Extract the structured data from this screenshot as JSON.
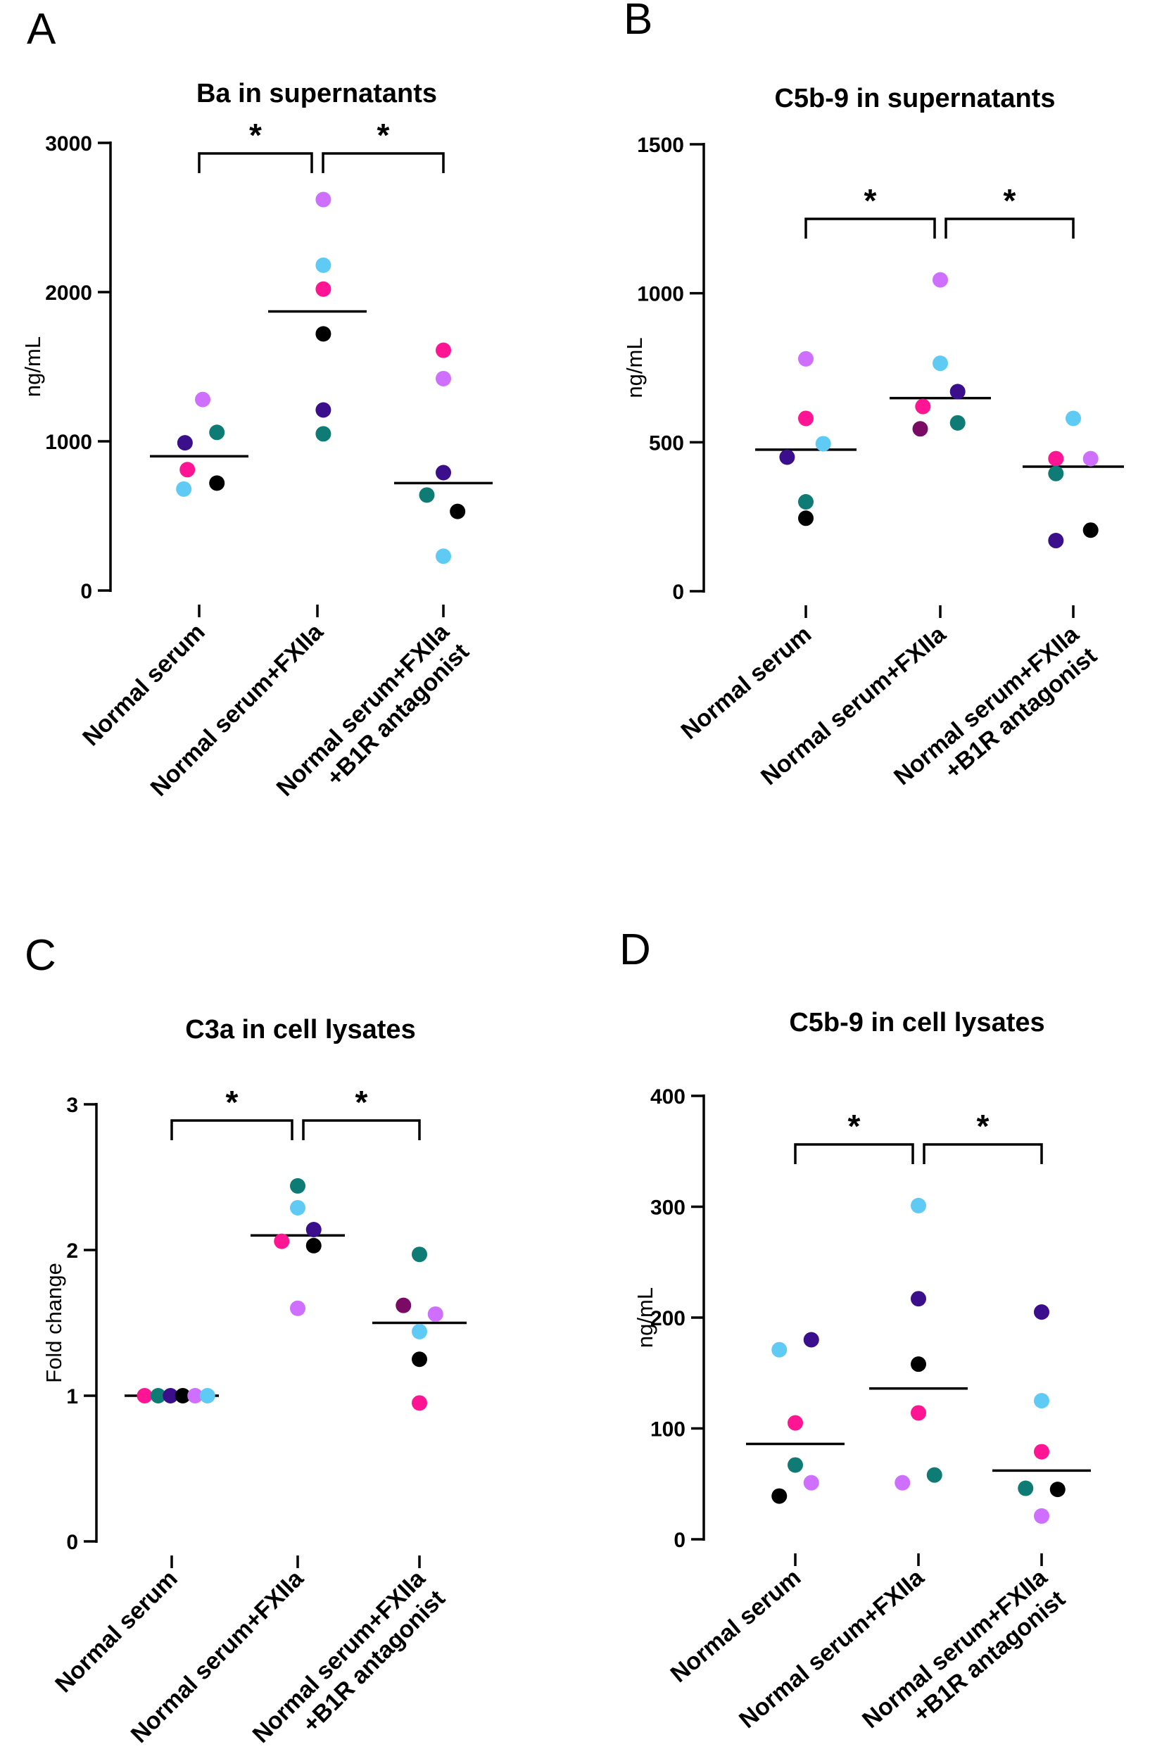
{
  "colors": {
    "pink": "#FF1493",
    "violet": "#CF6FFF",
    "cyan": "#5FCBF5",
    "teal": "#0E7B74",
    "black": "#000000",
    "indigo": "#3B0F8C",
    "plum": "#7A0A64"
  },
  "chart_data": [
    {
      "type": "scatter",
      "panel": "A",
      "title": "Ba in supernatants",
      "ylabel": "ng/mL",
      "xlabel": "",
      "ylim": [
        0,
        3000
      ],
      "yticks": [
        0,
        1000,
        2000,
        3000
      ],
      "tick_labels": [
        "0",
        "1000",
        "2000",
        "3000"
      ],
      "categories": [
        [
          "Normal serum"
        ],
        [
          "Normal serum+FXIIa"
        ],
        [
          "Normal serum+FXIIa",
          "+B1R antagonist"
        ]
      ],
      "means": [
        900,
        1870,
        720
      ],
      "groups": [
        {
          "points": [
            {
              "dx": -0.12,
              "y": 990,
              "color": "indigo"
            },
            {
              "dx": 0.15,
              "y": 1060,
              "color": "teal"
            },
            {
              "dx": -0.1,
              "y": 810,
              "color": "pink"
            },
            {
              "dx": -0.13,
              "y": 680,
              "color": "cyan"
            },
            {
              "dx": 0.15,
              "y": 720,
              "color": "black"
            },
            {
              "dx": 0.03,
              "y": 1280,
              "color": "violet"
            }
          ]
        },
        {
          "points": [
            {
              "dx": 0.05,
              "y": 2620,
              "color": "violet"
            },
            {
              "dx": 0.05,
              "y": 2180,
              "color": "cyan"
            },
            {
              "dx": 0.05,
              "y": 2020,
              "color": "pink"
            },
            {
              "dx": 0.05,
              "y": 1720,
              "color": "black"
            },
            {
              "dx": 0.05,
              "y": 1210,
              "color": "indigo"
            },
            {
              "dx": 0.05,
              "y": 1050,
              "color": "teal"
            }
          ]
        },
        {
          "points": [
            {
              "dx": 0.0,
              "y": 1610,
              "color": "pink"
            },
            {
              "dx": 0.0,
              "y": 1420,
              "color": "violet"
            },
            {
              "dx": 0.0,
              "y": 790,
              "color": "indigo"
            },
            {
              "dx": -0.14,
              "y": 640,
              "color": "teal"
            },
            {
              "dx": 0.12,
              "y": 530,
              "color": "black"
            },
            {
              "dx": 0.0,
              "y": 230,
              "color": "cyan"
            }
          ]
        }
      ],
      "brackets": [
        {
          "from": 0,
          "to": 1,
          "label": "*"
        },
        {
          "from": 1,
          "to": 2,
          "label": "*"
        }
      ]
    },
    {
      "type": "scatter",
      "panel": "B",
      "title": "C5b-9 in supernatants",
      "ylabel": "ng/mL",
      "xlabel": "",
      "ylim": [
        0,
        1500
      ],
      "yticks": [
        0,
        500,
        1000,
        1500
      ],
      "tick_labels": [
        "0",
        "500",
        "1000",
        "1500"
      ],
      "categories": [
        [
          "Normal serum"
        ],
        [
          "Normal serum+FXIIa"
        ],
        [
          "Normal serum+FXIIa",
          "+B1R antagonist"
        ]
      ],
      "means": [
        475,
        648,
        418
      ],
      "groups": [
        {
          "points": [
            {
              "dx": 0.0,
              "y": 780,
              "color": "violet"
            },
            {
              "dx": 0.0,
              "y": 580,
              "color": "pink"
            },
            {
              "dx": 0.13,
              "y": 495,
              "color": "cyan"
            },
            {
              "dx": -0.14,
              "y": 450,
              "color": "indigo"
            },
            {
              "dx": 0.0,
              "y": 300,
              "color": "teal"
            },
            {
              "dx": 0.0,
              "y": 245,
              "color": "black"
            }
          ]
        },
        {
          "points": [
            {
              "dx": 0.0,
              "y": 1045,
              "color": "violet"
            },
            {
              "dx": 0.0,
              "y": 765,
              "color": "cyan"
            },
            {
              "dx": 0.13,
              "y": 670,
              "color": "indigo"
            },
            {
              "dx": -0.13,
              "y": 620,
              "color": "pink"
            },
            {
              "dx": -0.15,
              "y": 545,
              "color": "plum"
            },
            {
              "dx": 0.13,
              "y": 565,
              "color": "teal"
            }
          ]
        },
        {
          "points": [
            {
              "dx": 0.0,
              "y": 580,
              "color": "cyan"
            },
            {
              "dx": -0.13,
              "y": 445,
              "color": "pink"
            },
            {
              "dx": 0.13,
              "y": 445,
              "color": "violet"
            },
            {
              "dx": -0.13,
              "y": 395,
              "color": "teal"
            },
            {
              "dx": 0.13,
              "y": 205,
              "color": "black"
            },
            {
              "dx": -0.13,
              "y": 170,
              "color": "indigo"
            }
          ]
        }
      ],
      "brackets": [
        {
          "from": 0,
          "to": 1,
          "label": "*"
        },
        {
          "from": 1,
          "to": 2,
          "label": "*"
        }
      ]
    },
    {
      "type": "scatter",
      "panel": "C",
      "title": "C3a in cell lysates",
      "ylabel": "Fold change",
      "xlabel": "",
      "ylim": [
        0,
        3
      ],
      "yticks": [
        0,
        1,
        2,
        3
      ],
      "tick_labels": [
        "0",
        "1",
        "2",
        "3"
      ],
      "categories": [
        [
          "Normal serum"
        ],
        [
          "Normal serum+FXIIa"
        ],
        [
          "Normal serum+FXIIa",
          "+B1R antagonist"
        ]
      ],
      "means": [
        1.0,
        2.1,
        1.5
      ],
      "groups": [
        {
          "points": [
            {
              "dx": -0.22,
              "y": 1.0,
              "color": "pink"
            },
            {
              "dx": -0.11,
              "y": 1.0,
              "color": "teal"
            },
            {
              "dx": -0.01,
              "y": 1.0,
              "color": "indigo"
            },
            {
              "dx": 0.09,
              "y": 1.0,
              "color": "black"
            },
            {
              "dx": 0.19,
              "y": 1.0,
              "color": "violet"
            },
            {
              "dx": 0.29,
              "y": 1.0,
              "color": "cyan"
            }
          ]
        },
        {
          "points": [
            {
              "dx": 0.0,
              "y": 2.44,
              "color": "teal"
            },
            {
              "dx": 0.0,
              "y": 2.29,
              "color": "cyan"
            },
            {
              "dx": 0.13,
              "y": 2.14,
              "color": "indigo"
            },
            {
              "dx": -0.13,
              "y": 2.06,
              "color": "pink"
            },
            {
              "dx": 0.13,
              "y": 2.03,
              "color": "black"
            },
            {
              "dx": 0.0,
              "y": 1.6,
              "color": "violet"
            }
          ]
        },
        {
          "points": [
            {
              "dx": 0.0,
              "y": 1.97,
              "color": "teal"
            },
            {
              "dx": -0.13,
              "y": 1.62,
              "color": "plum"
            },
            {
              "dx": 0.13,
              "y": 1.56,
              "color": "violet"
            },
            {
              "dx": 0.0,
              "y": 1.44,
              "color": "cyan"
            },
            {
              "dx": 0.0,
              "y": 1.25,
              "color": "black"
            },
            {
              "dx": 0.0,
              "y": 0.95,
              "color": "pink"
            }
          ]
        }
      ],
      "brackets": [
        {
          "from": 0,
          "to": 1,
          "label": "*"
        },
        {
          "from": 1,
          "to": 2,
          "label": "*"
        }
      ]
    },
    {
      "type": "scatter",
      "panel": "D",
      "title": "C5b-9 in cell lysates",
      "ylabel": "ng/mL",
      "xlabel": "",
      "ylim": [
        0,
        400
      ],
      "yticks": [
        0,
        100,
        200,
        300,
        400
      ],
      "tick_labels": [
        "0",
        "100",
        "200",
        "300",
        "400"
      ],
      "categories": [
        [
          "Normal serum"
        ],
        [
          "Normal serum+FXIIa"
        ],
        [
          "Normal serum+FXIIa",
          "+B1R antagonist"
        ]
      ],
      "means": [
        86,
        136,
        62
      ],
      "groups": [
        {
          "points": [
            {
              "dx": -0.13,
              "y": 171,
              "color": "cyan"
            },
            {
              "dx": 0.13,
              "y": 180,
              "color": "indigo"
            },
            {
              "dx": 0.0,
              "y": 105,
              "color": "pink"
            },
            {
              "dx": 0.0,
              "y": 67,
              "color": "teal"
            },
            {
              "dx": 0.13,
              "y": 51,
              "color": "violet"
            },
            {
              "dx": -0.13,
              "y": 39,
              "color": "black"
            }
          ]
        },
        {
          "points": [
            {
              "dx": 0.0,
              "y": 301,
              "color": "cyan"
            },
            {
              "dx": 0.0,
              "y": 217,
              "color": "indigo"
            },
            {
              "dx": 0.0,
              "y": 158,
              "color": "black"
            },
            {
              "dx": 0.0,
              "y": 114,
              "color": "pink"
            },
            {
              "dx": 0.13,
              "y": 58,
              "color": "teal"
            },
            {
              "dx": -0.13,
              "y": 51,
              "color": "violet"
            }
          ]
        },
        {
          "points": [
            {
              "dx": 0.0,
              "y": 205,
              "color": "indigo"
            },
            {
              "dx": 0.0,
              "y": 125,
              "color": "cyan"
            },
            {
              "dx": 0.0,
              "y": 79,
              "color": "pink"
            },
            {
              "dx": -0.13,
              "y": 46,
              "color": "teal"
            },
            {
              "dx": 0.13,
              "y": 45,
              "color": "black"
            },
            {
              "dx": 0.0,
              "y": 21,
              "color": "violet"
            }
          ]
        }
      ],
      "brackets": [
        {
          "from": 0,
          "to": 1,
          "label": "*"
        },
        {
          "from": 1,
          "to": 2,
          "label": "*"
        }
      ]
    }
  ]
}
